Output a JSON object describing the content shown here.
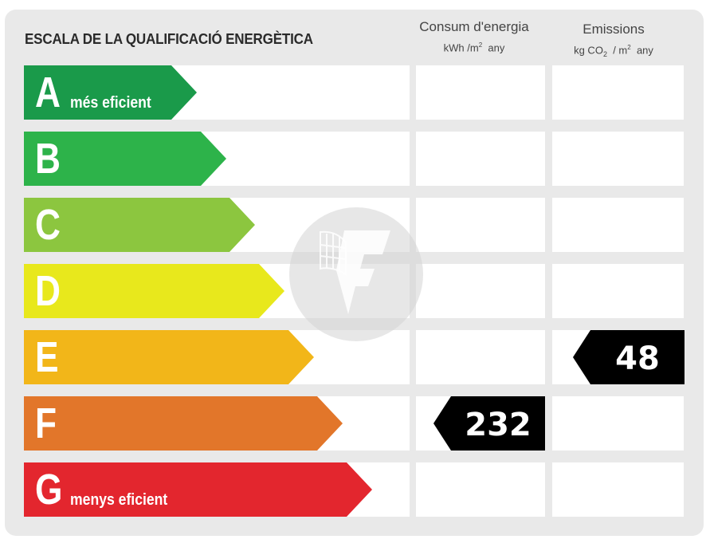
{
  "header": {
    "title": "ESCALA DE LA QUALIFICACIÓ ENERGÈTICA",
    "consum": {
      "label": "Consum d'energia",
      "unit_pre": "kWh /m",
      "unit_sup": "2",
      "unit_post": "any"
    },
    "emissions": {
      "label": "Emissions",
      "unit_pre": "kg CO",
      "unit_sub": "2",
      "unit_mid": "/ m",
      "unit_sup": "2",
      "unit_post": "any"
    }
  },
  "ratings": [
    {
      "letter": "A",
      "note": "més eficient",
      "color": "#1a9a4a"
    },
    {
      "letter": "B",
      "note": "",
      "color": "#2db34a"
    },
    {
      "letter": "C",
      "note": "",
      "color": "#8cc63f"
    },
    {
      "letter": "D",
      "note": "",
      "color": "#e8e81c"
    },
    {
      "letter": "E",
      "note": "",
      "color": "#f2b619"
    },
    {
      "letter": "F",
      "note": "",
      "color": "#e2762a"
    },
    {
      "letter": "G",
      "note": "menys eficient",
      "color": "#e3262e"
    }
  ],
  "consumption": {
    "value": "232",
    "rating": "F"
  },
  "emissions_result": {
    "value": "48",
    "rating": "E"
  },
  "colors": {
    "panel": "#e9e9e9",
    "cell": "#ffffff",
    "badge": "#000000"
  },
  "watermark": {
    "icon": "fotocasa-logo-icon"
  }
}
